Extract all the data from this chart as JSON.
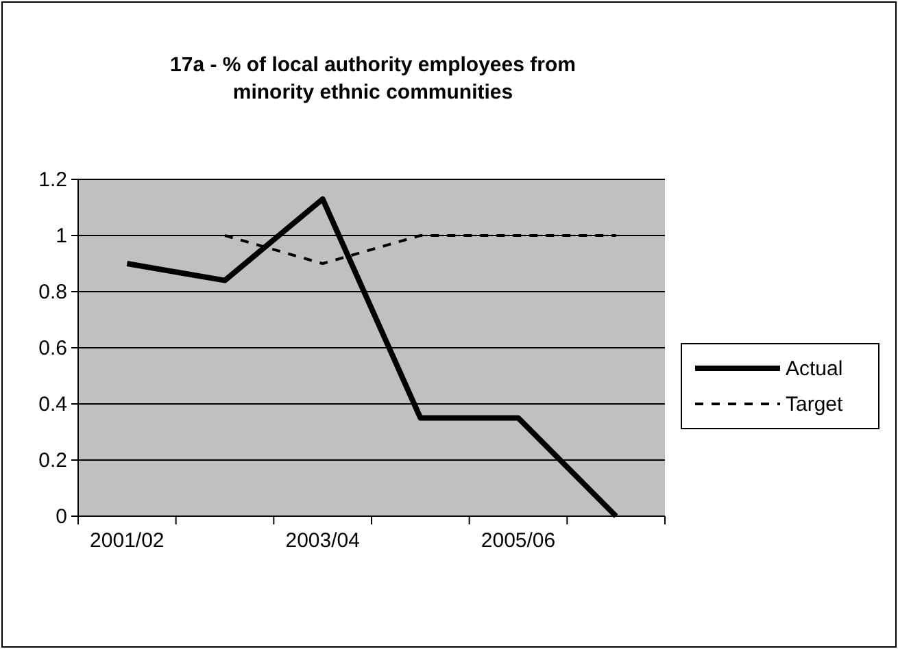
{
  "chart_data": {
    "type": "line",
    "title": "17a - % of local authority employees from minority ethnic communities",
    "categories": [
      "2001/02",
      null,
      "2003/04",
      null,
      "2005/06",
      null
    ],
    "series": [
      {
        "name": "Actual",
        "color": "#000000",
        "values": [
          0.9,
          0.84,
          1.13,
          0.35,
          0.35,
          0
        ],
        "line_style": "solid"
      },
      {
        "name": "Target",
        "color": "#000000",
        "values": [
          null,
          1,
          0.9,
          1,
          1,
          1
        ],
        "line_style": "dashed"
      }
    ],
    "ylim": [
      0,
      1.2
    ],
    "yticks": [
      0,
      0.2,
      0.4,
      0.6,
      0.8,
      1,
      1.2
    ],
    "grid": "y",
    "legend": "right",
    "marker": "none"
  }
}
